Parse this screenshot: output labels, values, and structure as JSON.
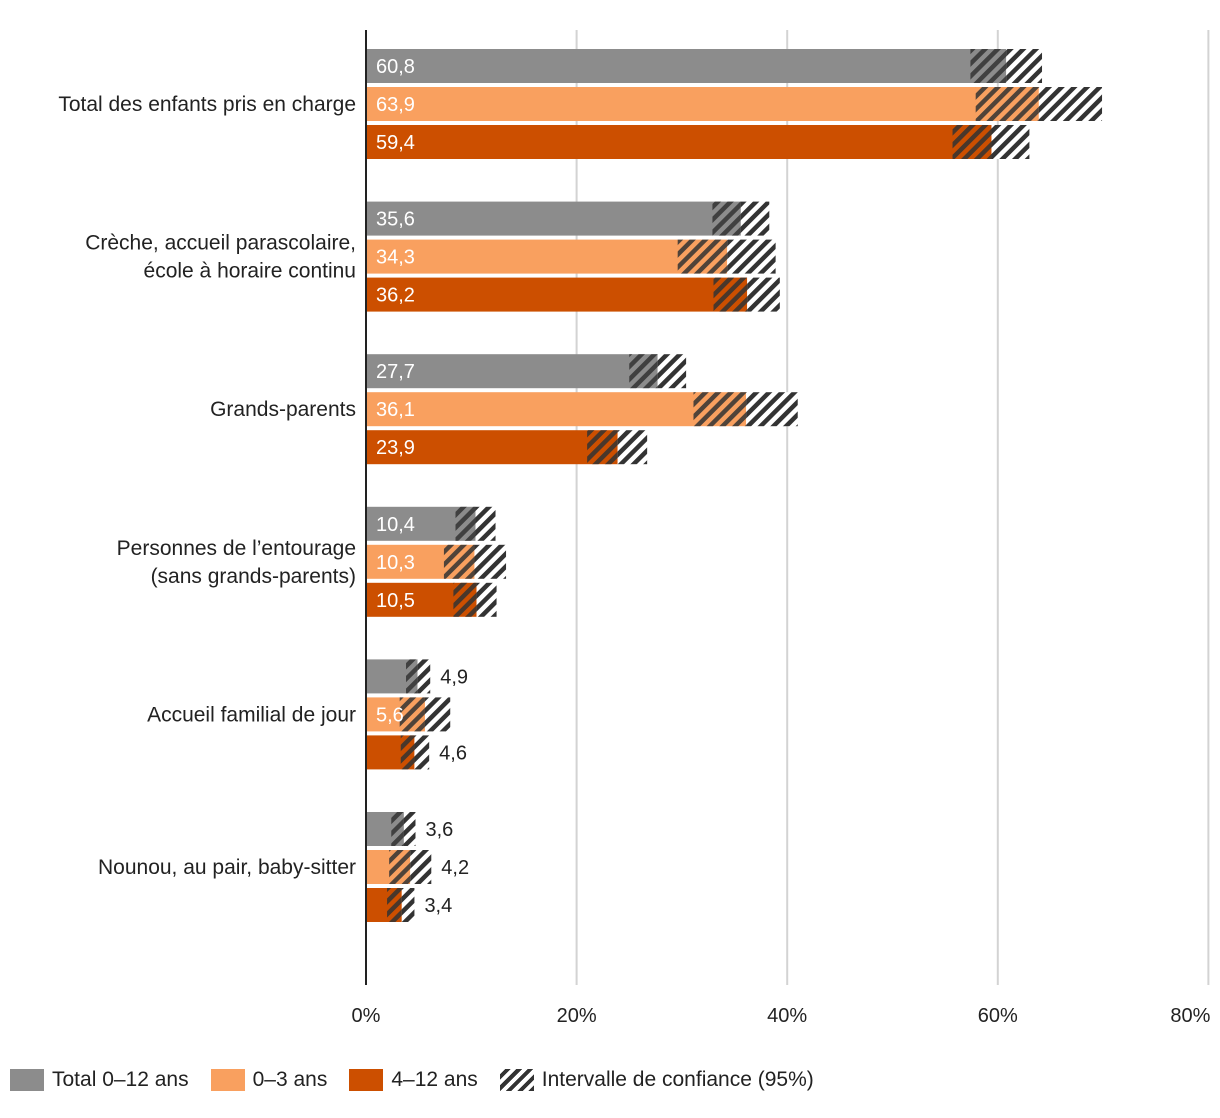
{
  "chart_data": {
    "type": "bar",
    "orientation": "horizontal",
    "categories": [
      [
        "Total des enfants pris en charge"
      ],
      [
        "Crèche, accueil parascolaire,",
        "école à horaire continu"
      ],
      [
        "Grands-parents"
      ],
      [
        "Personnes de l’entourage",
        "(sans grands-parents)"
      ],
      [
        "Accueil familial de jour"
      ],
      [
        "Nounou, au pair, baby-sitter"
      ]
    ],
    "series": [
      {
        "name": "Total 0–12 ans",
        "color": "#8c8c8c",
        "values": [
          60.8,
          35.6,
          27.7,
          10.4,
          4.9,
          3.6
        ],
        "labels": [
          "60,8",
          "35,6",
          "27,7",
          "10,4",
          "4,9",
          "3,6"
        ],
        "ci_low": [
          57.4,
          32.9,
          25.0,
          8.5,
          3.8,
          2.4
        ],
        "ci_high": [
          64.2,
          38.3,
          30.4,
          12.3,
          6.1,
          4.7
        ]
      },
      {
        "name": "0–3 ans",
        "color": "#f9a05f",
        "values": [
          63.9,
          34.3,
          36.1,
          10.3,
          5.6,
          4.2
        ],
        "labels": [
          "63,9",
          "34,3",
          "36,1",
          "10,3",
          "5,6",
          "4,2"
        ],
        "ci_low": [
          57.9,
          29.6,
          31.1,
          7.4,
          3.2,
          2.2
        ],
        "ci_high": [
          69.9,
          38.9,
          41.0,
          13.3,
          8.0,
          6.2
        ]
      },
      {
        "name": "4–12 ans",
        "color": "#cc4f00",
        "values": [
          59.4,
          36.2,
          23.9,
          10.5,
          4.6,
          3.4
        ],
        "labels": [
          "59,4",
          "36,2",
          "23,9",
          "10,5",
          "4,6",
          "3,4"
        ],
        "ci_low": [
          55.7,
          33.0,
          21.0,
          8.3,
          3.3,
          2.0
        ],
        "ci_high": [
          63.0,
          39.3,
          26.7,
          12.4,
          6.0,
          4.6
        ]
      }
    ],
    "ci_legend": "Intervalle de confiance (95%)",
    "x_ticks": [
      "0%",
      "20%",
      "40%",
      "60%",
      "80%"
    ],
    "xlim": [
      0,
      80
    ],
    "grid": true,
    "legend_position": "bottom-left"
  }
}
